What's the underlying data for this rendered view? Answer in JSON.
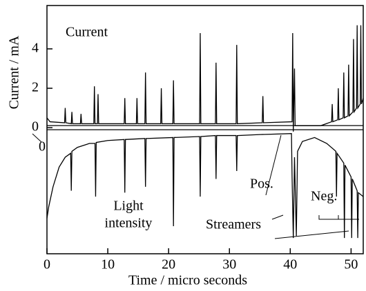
{
  "chart_data": {
    "type": "line",
    "x_label": "Time / micro seconds",
    "y_label": "Current / mA",
    "xlim": [
      0,
      52
    ],
    "ylim": [
      -6.4,
      6.2
    ],
    "xticks": [
      0,
      10,
      20,
      30,
      40,
      50
    ],
    "yticks": [
      0,
      2,
      4
    ],
    "color": "#000000",
    "annotations": {
      "current": "Current",
      "zero": "0",
      "light_1": "Light",
      "light_2": "intensity",
      "pos": "Pos.",
      "streamers": "Streamers",
      "neg": "Neg."
    },
    "series": [
      {
        "x": [
          0,
          0.5,
          2.9,
          3,
          3.1,
          4,
          4.1,
          4.2,
          5.5,
          5.6,
          5.7,
          7.7,
          7.8,
          7.9,
          8.3,
          8.4,
          8.5,
          12.7,
          12.8,
          12.9,
          14.7,
          14.8,
          14.9,
          16.1,
          16.2,
          16.3,
          18.7,
          18.8,
          18.9,
          20.7,
          20.8,
          20.9,
          25.1,
          25.2,
          25.3,
          27.7,
          27.8,
          27.9,
          31.1,
          31.2,
          31.3,
          35.4,
          35.5,
          35.6,
          40.3,
          40.4,
          40.5,
          40.7,
          40.8,
          45,
          46.8,
          46.9,
          47,
          47.8,
          47.9,
          48,
          48.7,
          48.8,
          48.9,
          49.5,
          49.6,
          49.7,
          50.3,
          50.4,
          50.5,
          50.9,
          51,
          51.1,
          51.5,
          51.6,
          51.7,
          52
        ],
        "values": [
          0.5,
          0.3,
          0.25,
          1,
          0.25,
          0.2,
          0.8,
          0.2,
          0.2,
          0.7,
          0.2,
          0.2,
          2.1,
          0.2,
          0.2,
          1.7,
          0.2,
          0.2,
          1.5,
          0.2,
          0.2,
          1.5,
          0.2,
          0.2,
          2.8,
          0.2,
          0.2,
          2,
          0.2,
          0.2,
          2.4,
          0.2,
          0.2,
          4.8,
          0.2,
          0.2,
          3.3,
          0.2,
          0.2,
          4.2,
          0.2,
          0.25,
          1.6,
          0.25,
          0.3,
          4.8,
          -0.2,
          3,
          0.1,
          0.1,
          0.3,
          1.2,
          0.3,
          0.4,
          2,
          0.4,
          0.5,
          2.8,
          0.5,
          0.6,
          3.2,
          0.6,
          0.8,
          4.5,
          0.8,
          1,
          5.2,
          1,
          1.2,
          5.2,
          1.2,
          1.5
        ]
      },
      {
        "x": [
          0,
          0.3,
          1,
          2,
          3,
          3.9,
          4,
          4.1,
          5,
          7,
          7.9,
          8,
          8.1,
          10,
          12.7,
          12.8,
          12.9,
          16.1,
          16.2,
          16.3,
          20.7,
          20.8,
          20.9,
          25.1,
          25.2,
          25.3,
          27.7,
          27.8,
          27.9,
          31.1,
          31.2,
          31.3,
          35,
          40.2,
          40.3,
          40.5,
          40.7,
          41,
          41.2,
          42,
          44,
          46,
          47.5,
          47.6,
          47.7,
          48.8,
          48.9,
          49,
          50,
          50.1,
          50.2,
          51,
          51.1,
          51.2,
          52
        ],
        "values": [
          -4.6,
          -4,
          -3,
          -2,
          -1.5,
          -1.3,
          -3.2,
          -1.2,
          -1,
          -0.8,
          -0.8,
          -3.5,
          -0.75,
          -0.65,
          -0.6,
          -3.3,
          -0.6,
          -0.55,
          -3,
          -0.55,
          -0.5,
          -5,
          -0.5,
          -0.45,
          -3.5,
          -0.45,
          -0.4,
          -2.6,
          -0.4,
          -0.4,
          -2.2,
          -0.4,
          -0.35,
          -0.3,
          -2.5,
          -5.6,
          -1.5,
          -5.5,
          -1.2,
          -0.7,
          -0.5,
          -0.8,
          -1.2,
          -3.5,
          -1.3,
          -1.8,
          -5.6,
          -1.9,
          -2.5,
          -5.6,
          -2.6,
          -3.2,
          -5.6,
          -3.3,
          -3.5
        ]
      }
    ]
  }
}
